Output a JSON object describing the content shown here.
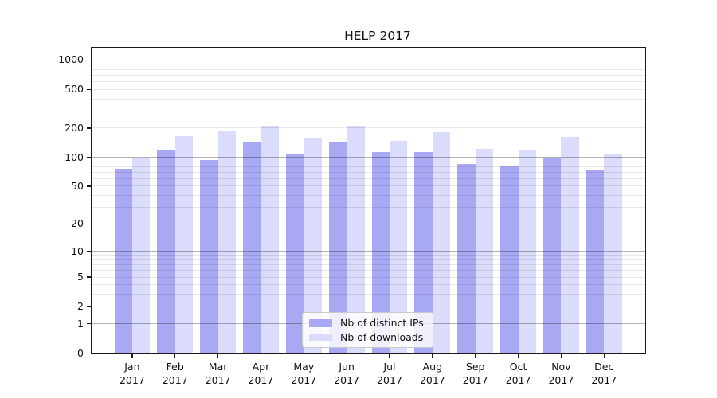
{
  "title": "HELP 2017",
  "chart_data": {
    "type": "bar",
    "title": "HELP 2017",
    "y_scale": "log10(value+1)",
    "ylim": [
      0,
      1315
    ],
    "grid": "on",
    "legend_position": "lower center",
    "categories": [
      "Jan",
      "Feb",
      "Mar",
      "Apr",
      "May",
      "Jun",
      "Jul",
      "Aug",
      "Sep",
      "Oct",
      "Nov",
      "Dec"
    ],
    "x_tick_year": "2017",
    "y_ticks": [
      1000,
      500,
      200,
      100,
      50,
      20,
      10,
      5,
      2,
      1,
      0
    ],
    "y_major_gridlines": [
      1,
      10,
      100,
      1000
    ],
    "y_minor_gridlines": [
      2,
      3,
      4,
      5,
      6,
      7,
      8,
      9,
      20,
      30,
      40,
      50,
      60,
      70,
      80,
      90,
      200,
      300,
      400,
      500,
      600,
      700,
      800,
      900
    ],
    "series": [
      {
        "name": "Nb of distinct IPs",
        "color": "#a9a9f3",
        "values": [
          76,
          119,
          93,
          145,
          110,
          141,
          113,
          114,
          85,
          80,
          98,
          74
        ]
      },
      {
        "name": "Nb of downloads",
        "color": "#dbdbfb",
        "values": [
          100,
          165,
          186,
          212,
          160,
          211,
          147,
          181,
          122,
          117,
          161,
          107
        ]
      }
    ]
  },
  "colors": {
    "grid_minor": "rgba(0,0,0,0.095)",
    "grid_major": "rgba(0,0,0,0.30)",
    "frame": "#1a1a1a",
    "background": "#ffffff"
  }
}
